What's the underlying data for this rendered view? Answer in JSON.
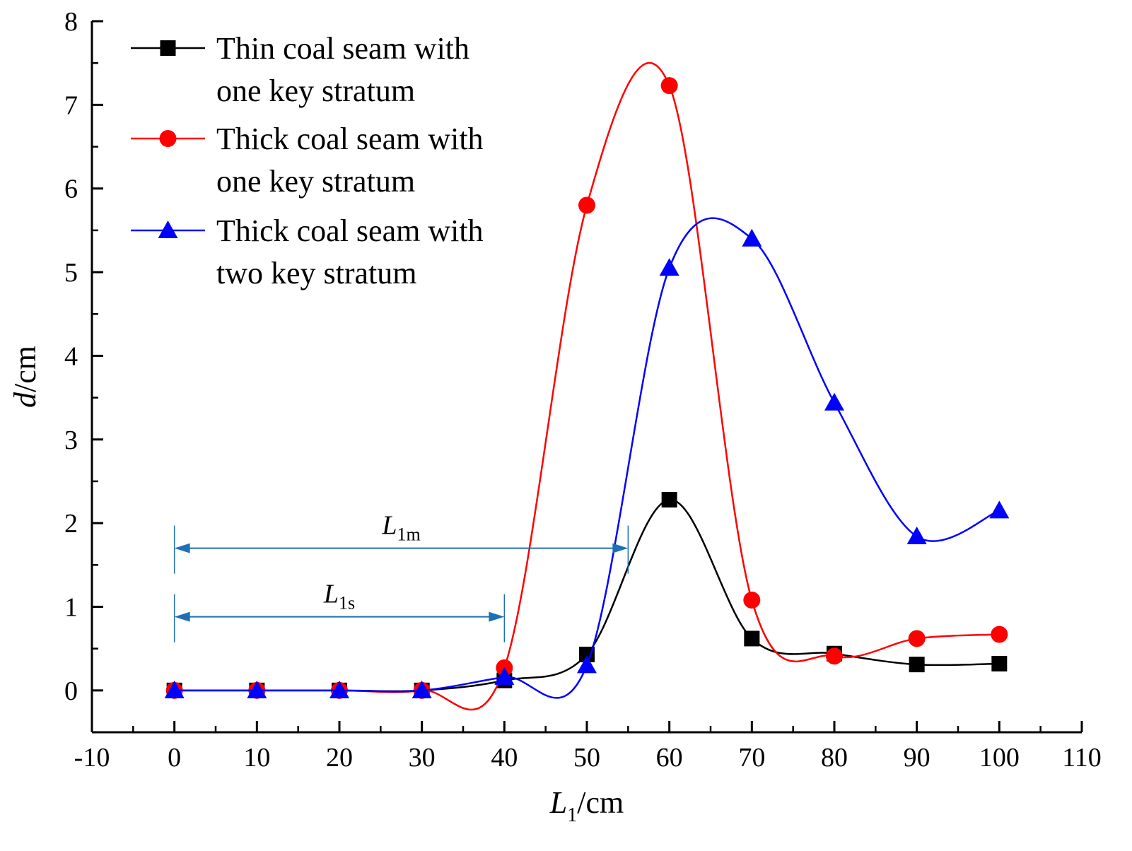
{
  "chart_data": {
    "type": "line",
    "title": "",
    "xlabel": {
      "main": "L",
      "sub": "1",
      "unit": "/cm"
    },
    "ylabel": {
      "main": "d",
      "unit": "/cm"
    },
    "xlim": [
      -10,
      110
    ],
    "ylim": [
      -0.5,
      8
    ],
    "xticks": [
      -10,
      0,
      10,
      20,
      30,
      40,
      50,
      60,
      70,
      80,
      90,
      100,
      110
    ],
    "yticks": [
      0,
      1,
      2,
      3,
      4,
      5,
      6,
      7,
      8
    ],
    "grid": false,
    "legend_position": "top-left",
    "series": [
      {
        "name": "Thin coal seam with one key stratum",
        "legend_lines": [
          "Thin coal seam with",
          "one key stratum"
        ],
        "color": "#000000",
        "marker": "square",
        "x": [
          0,
          10,
          20,
          30,
          40,
          50,
          60,
          70,
          80,
          90,
          100
        ],
        "y": [
          0,
          0,
          0,
          0,
          0.12,
          0.43,
          2.28,
          0.62,
          0.44,
          0.31,
          0.32
        ]
      },
      {
        "name": "Thick coal seam with one key stratum",
        "legend_lines": [
          "Thick coal seam with",
          "one key stratum"
        ],
        "color": "#ff0000",
        "marker": "circle",
        "x": [
          0,
          10,
          20,
          30,
          40,
          50,
          60,
          70,
          80,
          90,
          100
        ],
        "y": [
          0,
          0,
          0,
          0,
          0.27,
          5.8,
          7.23,
          1.08,
          0.41,
          0.62,
          0.67
        ]
      },
      {
        "name": "Thick coal seam with two key stratum",
        "legend_lines": [
          "Thick coal seam with",
          "two key stratum"
        ],
        "color": "#0000ff",
        "marker": "triangle",
        "x": [
          0,
          10,
          20,
          30,
          40,
          50,
          60,
          70,
          80,
          90,
          100
        ],
        "y": [
          0,
          0,
          0,
          0,
          0.16,
          0.3,
          5.05,
          5.4,
          3.44,
          1.84,
          2.15
        ]
      }
    ],
    "annotations": [
      {
        "label": "L",
        "sub": "1m",
        "x_start": 0,
        "x_end": 55,
        "y": 1.7,
        "color": "#1f6fb5"
      },
      {
        "label": "L",
        "sub": "1s",
        "x_start": 0,
        "x_end": 40,
        "y": 0.88,
        "color": "#1f6fb5"
      }
    ]
  }
}
